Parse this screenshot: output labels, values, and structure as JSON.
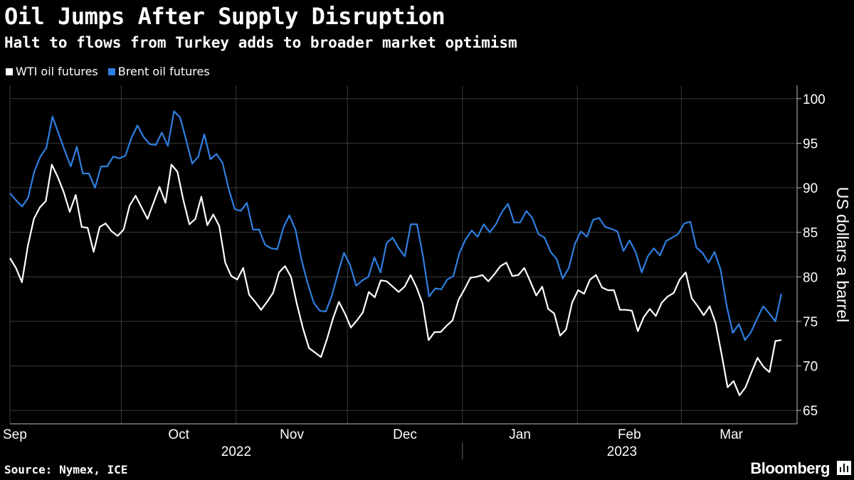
{
  "header": {
    "title": "Oil Jumps After Supply Disruption",
    "subtitle": "Halt to flows from Turkey adds to broader market optimism"
  },
  "footer": {
    "source": "Source: Nymex, ICE",
    "brand": "Bloomberg"
  },
  "icons": {
    "brand_icon": "bloomberg-chart-icon"
  },
  "chart_data": {
    "type": "line",
    "title": "Oil Jumps After Supply Disruption",
    "ylabel": "US dollars a barrel",
    "ylim": [
      63.5,
      101.5
    ],
    "yticks": [
      65,
      70,
      75,
      80,
      85,
      90,
      95,
      100
    ],
    "grid": true,
    "legend_position": "top-left",
    "x_month_labels": [
      "Sep",
      "Oct",
      "Nov",
      "Dec",
      "Jan",
      "Feb",
      "Mar"
    ],
    "x_year_labels": [
      "2022",
      "2023"
    ],
    "x_range": [
      "2022-09-01",
      "2023-03-28"
    ],
    "series": [
      {
        "name": "WTI oil futures",
        "color": "#ffffff",
        "values": [
          82.1,
          81.0,
          79.4,
          83.5,
          86.5,
          87.8,
          88.5,
          92.6,
          91.2,
          89.5,
          87.3,
          89.2,
          85.6,
          85.5,
          82.8,
          85.6,
          86.0,
          85.1,
          84.6,
          85.3,
          88.0,
          89.1,
          87.8,
          86.5,
          88.3,
          90.1,
          88.3,
          92.6,
          91.8,
          88.6,
          85.9,
          86.5,
          89.0,
          85.8,
          87.0,
          85.7,
          81.6,
          80.1,
          79.7,
          81.0,
          78.0,
          77.2,
          76.3,
          77.2,
          78.2,
          80.5,
          81.2,
          80.0,
          76.9,
          74.2,
          72.0,
          71.5,
          71.0,
          73.0,
          75.3,
          77.2,
          75.9,
          74.3,
          75.1,
          76.0,
          78.3,
          77.7,
          79.6,
          79.5,
          78.9,
          78.3,
          78.9,
          80.2,
          78.8,
          77.0,
          72.9,
          73.8,
          73.8,
          74.5,
          75.1,
          77.4,
          78.6,
          79.9,
          80.0,
          80.2,
          79.5,
          80.3,
          81.2,
          81.6,
          80.1,
          80.2,
          81.0,
          79.5,
          77.9,
          78.9,
          76.4,
          75.9,
          73.4,
          74.1,
          77.1,
          78.5,
          78.1,
          79.7,
          80.2,
          78.8,
          78.5,
          78.5,
          76.3,
          76.3,
          76.2,
          73.9,
          75.5,
          76.4,
          75.6,
          77.1,
          77.8,
          78.2,
          79.7,
          80.5,
          77.6,
          76.7,
          75.7,
          76.7,
          74.8,
          71.3,
          67.6,
          68.3,
          66.7,
          67.6,
          69.3,
          70.9,
          69.9,
          69.3,
          72.8,
          72.9
        ]
      },
      {
        "name": "Brent oil futures",
        "color": "#2f7fe0",
        "values": [
          89.4,
          88.6,
          87.9,
          88.9,
          91.8,
          93.5,
          94.5,
          98.0,
          96.1,
          94.2,
          92.4,
          94.6,
          91.6,
          91.6,
          90.0,
          92.4,
          92.4,
          93.5,
          93.3,
          93.6,
          95.6,
          97.0,
          95.7,
          94.9,
          94.8,
          96.2,
          94.7,
          98.6,
          97.9,
          95.4,
          92.7,
          93.5,
          96.0,
          93.2,
          93.8,
          92.8,
          89.9,
          87.6,
          87.4,
          88.3,
          85.3,
          85.3,
          83.6,
          83.2,
          83.1,
          85.5,
          86.9,
          85.3,
          81.9,
          79.3,
          77.1,
          76.2,
          76.1,
          77.9,
          80.4,
          82.7,
          81.3,
          79.0,
          79.6,
          80.0,
          82.2,
          80.5,
          83.8,
          84.4,
          83.2,
          82.3,
          85.9,
          85.9,
          82.3,
          77.8,
          78.7,
          78.6,
          79.7,
          80.1,
          82.7,
          84.2,
          85.2,
          84.5,
          85.9,
          85.0,
          85.9,
          87.3,
          88.2,
          86.1,
          86.1,
          87.4,
          86.6,
          84.8,
          84.4,
          82.8,
          82.0,
          79.8,
          81.0,
          83.7,
          85.1,
          84.5,
          86.4,
          86.6,
          85.6,
          85.4,
          85.1,
          82.9,
          84.1,
          82.8,
          80.5,
          82.3,
          83.2,
          82.4,
          84.0,
          84.4,
          84.8,
          86.0,
          86.2,
          83.3,
          82.7,
          81.6,
          82.8,
          80.8,
          76.7,
          73.7,
          74.7,
          72.9,
          73.8,
          75.3,
          76.7,
          75.9,
          75.0,
          78.1
        ]
      }
    ]
  }
}
